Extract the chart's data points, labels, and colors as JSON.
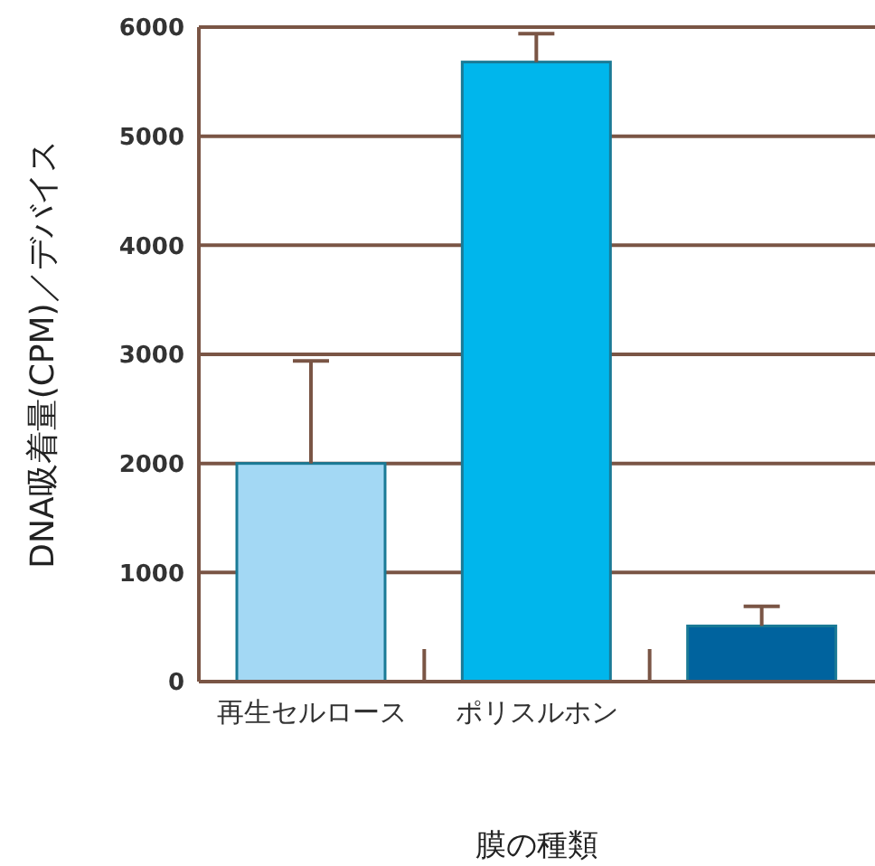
{
  "chart_data": {
    "type": "bar",
    "xlabel": "膜の種類",
    "ylabel": "DNA吸着量(CPM)／デバイス",
    "categories": [
      "再生セルロース",
      "ポリスルホン",
      null
    ],
    "values": [
      2000,
      5680,
      510
    ],
    "colors": [
      "#a3d8f4",
      "#00b6ec",
      "#00639e"
    ],
    "errors": [
      [
        2000,
        2940
      ],
      [
        5680,
        5940
      ],
      [
        510,
        690
      ]
    ],
    "ylim": [
      0,
      6000
    ],
    "yticks": [
      0,
      1000,
      2000,
      3000,
      4000,
      5000,
      6000
    ],
    "grid": "y",
    "legend": false
  }
}
